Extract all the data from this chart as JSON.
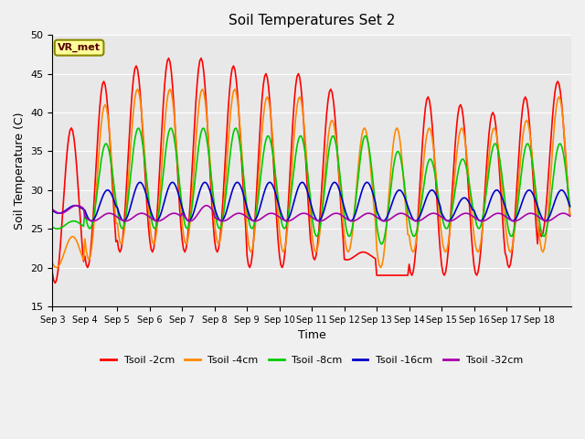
{
  "title": "Soil Temperatures Set 2",
  "xlabel": "Time",
  "ylabel": "Soil Temperature (C)",
  "ylim": [
    15,
    50
  ],
  "yticks": [
    15,
    20,
    25,
    30,
    35,
    40,
    45,
    50
  ],
  "annotation_text": "VR_met",
  "fig_bg_color": "#f0f0f0",
  "plot_bg_color": "#e8e8e8",
  "lines": [
    {
      "label": "Tsoil -2cm",
      "color": "#ff0000"
    },
    {
      "label": "Tsoil -4cm",
      "color": "#ff8800"
    },
    {
      "label": "Tsoil -8cm",
      "color": "#00cc00"
    },
    {
      "label": "Tsoil -16cm",
      "color": "#0000cc"
    },
    {
      "label": "Tsoil -32cm",
      "color": "#aa00aa"
    }
  ],
  "xtick_labels": [
    "Sep 3",
    "Sep 4",
    "Sep 5",
    "Sep 6",
    "Sep 7",
    "Sep 8",
    "Sep 9",
    "Sep 10",
    "Sep 11",
    "Sep 12",
    "Sep 13",
    "Sep 14",
    "Sep 15",
    "Sep 16",
    "Sep 17",
    "Sep 18"
  ],
  "n_days": 16,
  "pts_per_day": 24,
  "depth_2cm_day_max": [
    38,
    44,
    46,
    47,
    47,
    46,
    45,
    45,
    43,
    22,
    19,
    42,
    41,
    40,
    42,
    44
  ],
  "depth_2cm_day_min": [
    18,
    20,
    22,
    22,
    22,
    22,
    20,
    20,
    21,
    21,
    19,
    19,
    19,
    19,
    20,
    24
  ],
  "depth_4cm_day_max": [
    24,
    41,
    43,
    43,
    43,
    43,
    42,
    42,
    39,
    38,
    38,
    38,
    38,
    38,
    39,
    42
  ],
  "depth_4cm_day_min": [
    20,
    21,
    23,
    23,
    23,
    23,
    22,
    22,
    22,
    22,
    20,
    22,
    22,
    22,
    22,
    22
  ],
  "depth_8cm_day_max": [
    26,
    36,
    38,
    38,
    38,
    38,
    37,
    37,
    37,
    37,
    35,
    34,
    34,
    36,
    36,
    36
  ],
  "depth_8cm_day_min": [
    25,
    25,
    25,
    25,
    25,
    25,
    25,
    25,
    24,
    24,
    23,
    24,
    25,
    25,
    24,
    24
  ],
  "depth_16cm_day_max": [
    28,
    30,
    31,
    31,
    31,
    31,
    31,
    31,
    31,
    31,
    30,
    30,
    29,
    30,
    30,
    30
  ],
  "depth_16cm_day_min": [
    27,
    26,
    26,
    26,
    26,
    26,
    26,
    26,
    26,
    26,
    26,
    26,
    26,
    26,
    26,
    26
  ],
  "depth_32cm_day_max": [
    28,
    27,
    27,
    27,
    28,
    27,
    27,
    27,
    27,
    27,
    27,
    27,
    27,
    27,
    27,
    27
  ],
  "depth_32cm_day_min": [
    27,
    26,
    26,
    26,
    26,
    26,
    26,
    26,
    26,
    26,
    26,
    26,
    26,
    26,
    26,
    26
  ]
}
